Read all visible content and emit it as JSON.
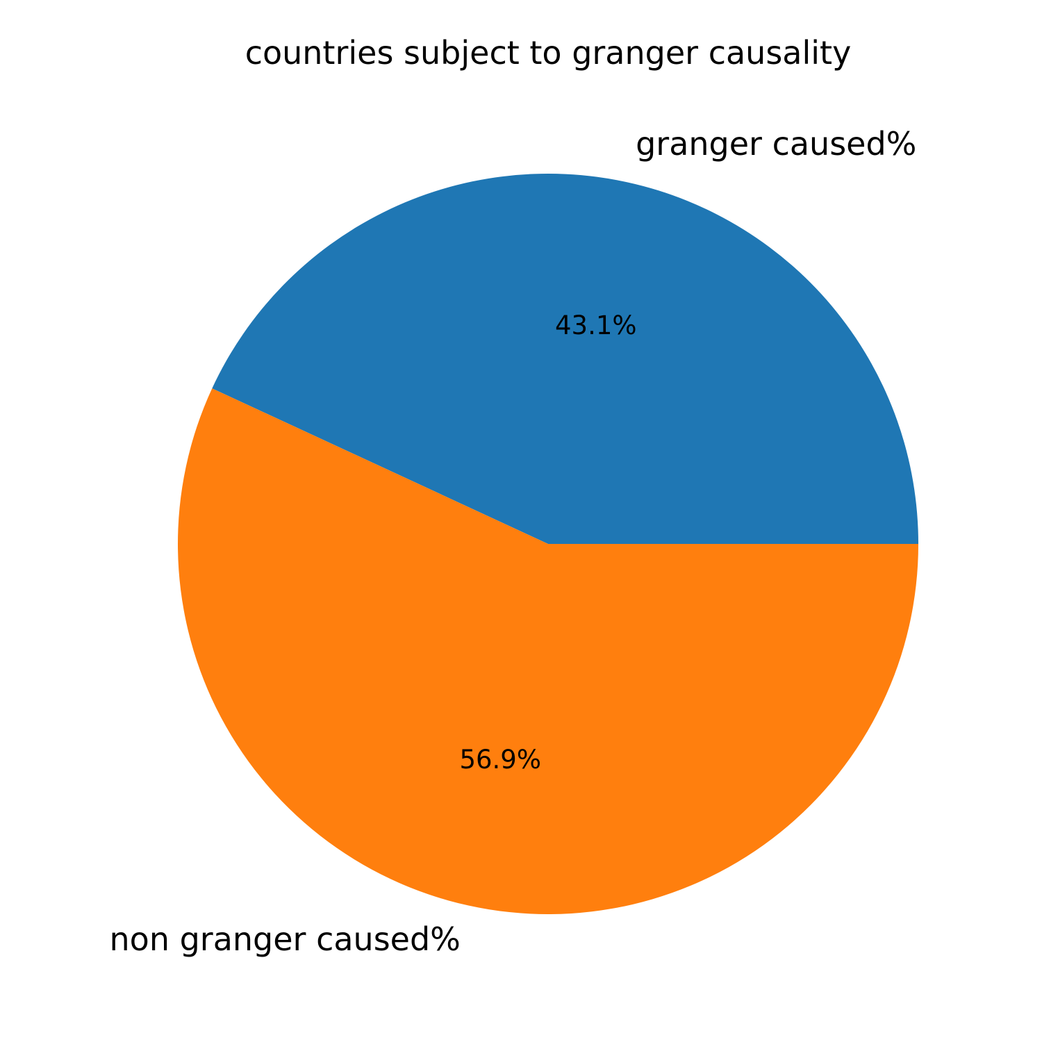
{
  "chart_data": {
    "type": "pie",
    "title": "countries subject to granger causality",
    "start_angle_deg": 0,
    "direction": "counterclockwise",
    "slices": [
      {
        "label": "granger caused%",
        "value": 43.1,
        "pct_label": "43.1%",
        "color": "#1f77b4"
      },
      {
        "label": "non granger caused%",
        "value": 56.9,
        "pct_label": "56.9%",
        "color": "#ff7f0e"
      }
    ]
  }
}
